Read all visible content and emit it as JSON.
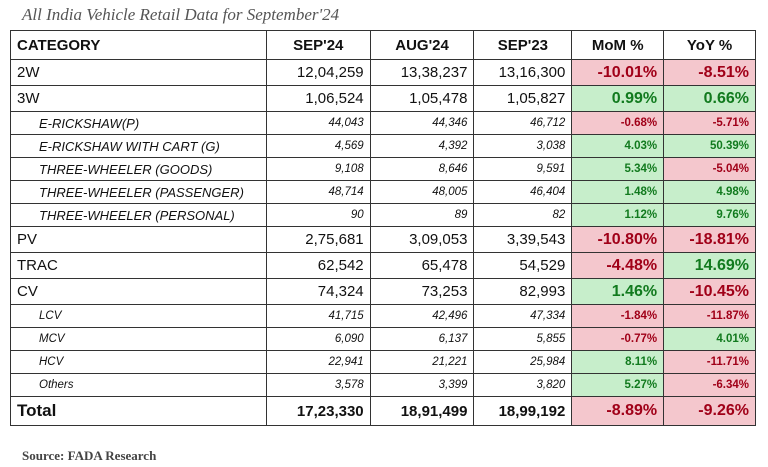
{
  "title": "All India Vehicle Retail Data for September'24",
  "source": "Source: FADA Research",
  "colors": {
    "negative_bg": "#f4c7cd",
    "negative_text": "#a00018",
    "positive_bg": "#c7eecb",
    "positive_text": "#117a1e"
  },
  "headers": [
    "CATEGORY",
    "SEP'24",
    "AUG'24",
    "SEP'23",
    "MoM %",
    "YoY %"
  ],
  "rows": [
    {
      "type": "main",
      "category": "2W",
      "sep24": "12,04,259",
      "aug24": "13,38,237",
      "sep23": "13,16,300",
      "mom": "-10.01%",
      "yoy": "-8.51%"
    },
    {
      "type": "main",
      "category": "3W",
      "sep24": "1,06,524",
      "aug24": "1,05,478",
      "sep23": "1,05,827",
      "mom": "0.99%",
      "yoy": "0.66%"
    },
    {
      "type": "sub",
      "category": "E-RICKSHAW(P)",
      "sep24": "44,043",
      "aug24": "44,346",
      "sep23": "46,712",
      "mom": "-0.68%",
      "yoy": "-5.71%"
    },
    {
      "type": "sub",
      "category": "E-RICKSHAW WITH CART (G)",
      "sep24": "4,569",
      "aug24": "4,392",
      "sep23": "3,038",
      "mom": "4.03%",
      "yoy": "50.39%"
    },
    {
      "type": "sub",
      "category": "THREE-WHEELER (GOODS)",
      "sep24": "9,108",
      "aug24": "8,646",
      "sep23": "9,591",
      "mom": "5.34%",
      "yoy": "-5.04%"
    },
    {
      "type": "sub",
      "category": "THREE-WHEELER (PASSENGER)",
      "sep24": "48,714",
      "aug24": "48,005",
      "sep23": "46,404",
      "mom": "1.48%",
      "yoy": "4.98%"
    },
    {
      "type": "sub",
      "category": "THREE-WHEELER (PERSONAL)",
      "sep24": "90",
      "aug24": "89",
      "sep23": "82",
      "mom": "1.12%",
      "yoy": "9.76%"
    },
    {
      "type": "main",
      "category": "PV",
      "sep24": "2,75,681",
      "aug24": "3,09,053",
      "sep23": "3,39,543",
      "mom": "-10.80%",
      "yoy": "-18.81%"
    },
    {
      "type": "main",
      "category": "TRAC",
      "sep24": "62,542",
      "aug24": "65,478",
      "sep23": "54,529",
      "mom": "-4.48%",
      "yoy": "14.69%"
    },
    {
      "type": "main",
      "category": "CV",
      "sep24": "74,324",
      "aug24": "73,253",
      "sep23": "82,993",
      "mom": "1.46%",
      "yoy": "-10.45%"
    },
    {
      "type": "sub",
      "category": "LCV",
      "sep24": "41,715",
      "aug24": "42,496",
      "sep23": "47,334",
      "mom": "-1.84%",
      "yoy": "-11.87%"
    },
    {
      "type": "sub",
      "category": "MCV",
      "sep24": "6,090",
      "aug24": "6,137",
      "sep23": "5,855",
      "mom": "-0.77%",
      "yoy": "4.01%"
    },
    {
      "type": "sub",
      "category": "HCV",
      "sep24": "22,941",
      "aug24": "21,221",
      "sep23": "25,984",
      "mom": "8.11%",
      "yoy": "-11.71%"
    },
    {
      "type": "sub",
      "category": "Others",
      "sep24": "3,578",
      "aug24": "3,399",
      "sep23": "3,820",
      "mom": "5.27%",
      "yoy": "-6.34%"
    },
    {
      "type": "total",
      "category": "Total",
      "sep24": "17,23,330",
      "aug24": "18,91,499",
      "sep23": "18,99,192",
      "mom": "-8.89%",
      "yoy": "-9.26%"
    }
  ]
}
